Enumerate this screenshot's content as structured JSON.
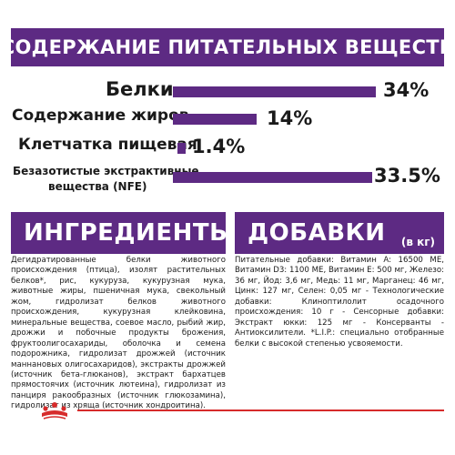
{
  "header": {
    "title": "СОДЕРЖАНИЕ ПИТАТЕЛЬНЫХ ВЕЩЕСТВ"
  },
  "nutrients": [
    {
      "label": "Белки",
      "value": "34%",
      "percent": 34
    },
    {
      "label": "Содержание жиров",
      "value": "14%",
      "percent": 14
    },
    {
      "label": "Клетчатка пищевая",
      "value": "1.4%",
      "percent": 1.4
    },
    {
      "label_line1": "Безазотистые экстрактивные",
      "label_line2": "вещества (NFE)",
      "value": "33.5%",
      "percent": 33.5
    }
  ],
  "ingredients": {
    "title": "ИНГРЕДИЕНТЫ",
    "text": "Дегидратированные белки животного происхождения (птица), изолят растительных белков*, рис, кукуруза, кукурузная мука, животные жиры, пшеничная мука, свекольный жом, гидролизат белков животного происхождения, кукурузная клейковина, минеральные вещества, соевое масло, рыбий жир, дрожжи и побочные продукты брожения, фруктоолигосахариды, оболочка и семена подорожника, гидролизат дрожжей (источник маннановых олигосахаридов), экстракты дрожжей (источник бета-глюканов), экстракт бархатцев прямостоячих (источник лютеина), гидролизат из панциря ракообразных (источник глюкозамина), гидролизат из хряща (источник хондроитина)."
  },
  "additives": {
    "title": "ДОБАВКИ",
    "unit": "(в кг)",
    "text": "Питательные добавки: Витамин A: 16500 ME, Витамин D3: 1100 ME, Витамин E: 500 мг, Железо: 36 мг, Йод: 3,6 мг, Медь: 11 мг, Марганец: 46 мг, Цинк: 127 мг, Селен: 0,05 мг - Технологические добавки: Клиноптилолит осадочного происхождения: 10 г - Сенсорные добавки: Экстракт юкки: 125 мг - Консерванты - Антиоксилители. *L.I.P.: специально отобранные белки с высокой степенью усвояемости."
  },
  "colors": {
    "accent": "#5d2a83",
    "brand_red": "#d62b2b"
  },
  "logo": {
    "icon": "royal-canin-crown-icon"
  }
}
